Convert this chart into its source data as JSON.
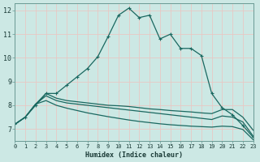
{
  "xlabel": "Humidex (Indice chaleur)",
  "xlim": [
    0,
    23
  ],
  "ylim": [
    6.5,
    12.3
  ],
  "xtick_vals": [
    0,
    1,
    2,
    3,
    4,
    5,
    6,
    7,
    8,
    9,
    10,
    11,
    12,
    13,
    14,
    15,
    16,
    17,
    18,
    19,
    20,
    21,
    22,
    23
  ],
  "ytick_vals": [
    7,
    8,
    9,
    10,
    11,
    12
  ],
  "bg_color": "#cce8e4",
  "grid_color": "#e8c8c4",
  "line_color": "#1a6860",
  "x_vals": [
    0,
    1,
    2,
    3,
    4,
    5,
    6,
    7,
    8,
    9,
    10,
    11,
    12,
    13,
    14,
    15,
    16,
    17,
    18,
    19,
    20,
    21,
    22,
    23
  ],
  "series_max": [
    7.2,
    7.5,
    8.0,
    8.5,
    8.5,
    8.85,
    9.2,
    9.55,
    10.05,
    10.9,
    11.8,
    12.1,
    11.7,
    11.8,
    10.8,
    11.0,
    10.4,
    10.4,
    10.1,
    8.5,
    7.9,
    7.6,
    7.15,
    6.65
  ],
  "series_l2": [
    7.2,
    7.5,
    8.05,
    8.5,
    8.3,
    8.2,
    8.15,
    8.1,
    8.05,
    8.0,
    7.98,
    7.95,
    7.9,
    7.85,
    7.82,
    7.78,
    7.75,
    7.72,
    7.68,
    7.65,
    7.82,
    7.82,
    7.5,
    6.95
  ],
  "series_l3": [
    7.2,
    7.5,
    8.05,
    8.4,
    8.2,
    8.1,
    8.05,
    8.0,
    7.95,
    7.9,
    7.85,
    7.8,
    7.75,
    7.7,
    7.65,
    7.6,
    7.55,
    7.5,
    7.45,
    7.4,
    7.55,
    7.5,
    7.3,
    6.7
  ],
  "series_min": [
    7.2,
    7.5,
    8.05,
    8.2,
    8.0,
    7.88,
    7.78,
    7.68,
    7.6,
    7.52,
    7.45,
    7.38,
    7.32,
    7.27,
    7.22,
    7.18,
    7.15,
    7.12,
    7.1,
    7.08,
    7.12,
    7.1,
    6.98,
    6.55
  ]
}
